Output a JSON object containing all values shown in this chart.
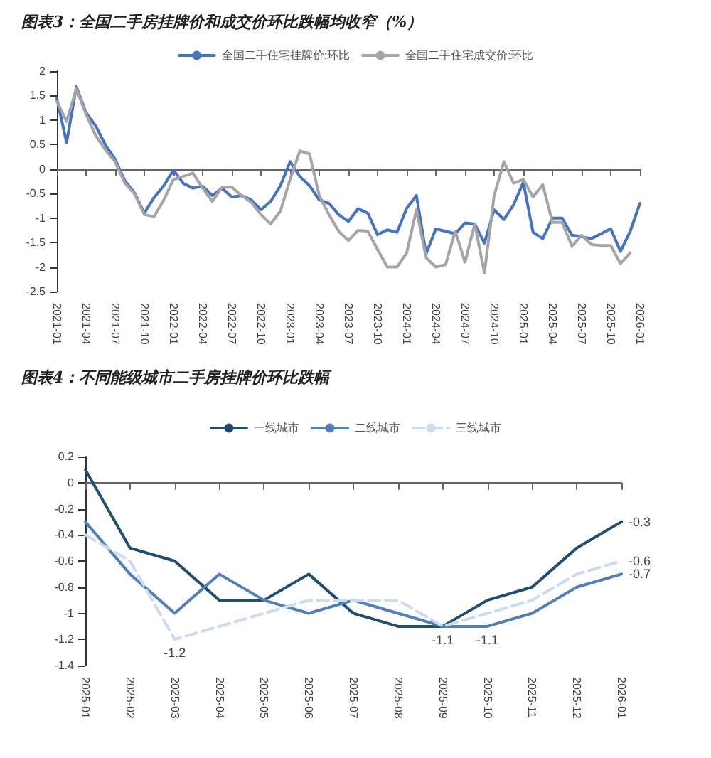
{
  "chart_data": [
    {
      "type": "line",
      "title": "图表3：全国二手房挂牌价和成交价环比跌幅均收窄（%）",
      "categories": [
        "2021-01",
        null,
        null,
        "2021-04",
        null,
        null,
        "2021-07",
        null,
        null,
        "2021-10",
        null,
        null,
        "2022-01",
        null,
        null,
        "2022-04",
        null,
        null,
        "2022-07",
        null,
        null,
        "2022-10",
        null,
        null,
        "2023-01",
        null,
        null,
        "2023-04",
        null,
        null,
        "2023-07",
        null,
        null,
        "2023-10",
        null,
        null,
        "2024-01",
        null,
        null,
        "2024-04",
        null,
        null,
        "2024-07",
        null,
        null,
        "2024-10",
        null,
        null,
        "2025-01",
        null,
        null,
        "2025-04",
        null,
        null,
        "2025-07",
        null,
        null,
        "2025-10",
        null,
        null,
        "2026-01"
      ],
      "series": [
        {
          "name": "全国二手住宅挂牌价:环比",
          "color": "#4472c4",
          "values": [
            1.44,
            0.54,
            1.68,
            1.15,
            0.88,
            0.49,
            0.2,
            -0.24,
            -0.49,
            -0.9,
            -0.58,
            -0.34,
            -0.02,
            -0.29,
            -0.39,
            -0.35,
            -0.54,
            -0.39,
            -0.57,
            -0.54,
            -0.63,
            -0.83,
            -0.66,
            -0.34,
            0.15,
            -0.15,
            -0.34,
            -0.63,
            -0.7,
            -0.93,
            -1.07,
            -0.81,
            -0.9,
            -1.34,
            -1.24,
            -1.29,
            -0.8,
            -0.54,
            -1.73,
            -1.22,
            -1.27,
            -1.32,
            -1.1,
            -1.12,
            -1.51,
            -0.83,
            -1.03,
            -0.73,
            -0.27,
            -1.29,
            -1.42,
            -1.0,
            -1.0,
            -1.35,
            -1.38,
            -1.42,
            -1.32,
            -1.22,
            -1.68,
            -1.27,
            -0.7
          ]
        },
        {
          "name": "全国二手住宅成交价:环比",
          "color": "#a5a5a5",
          "values": [
            1.38,
            0.97,
            1.64,
            1.12,
            0.68,
            0.39,
            0.15,
            -0.29,
            -0.51,
            -0.93,
            -0.97,
            -0.63,
            -0.21,
            -0.15,
            -0.08,
            -0.39,
            -0.66,
            -0.37,
            -0.37,
            -0.54,
            -0.68,
            -0.93,
            -1.12,
            -0.86,
            -0.21,
            0.37,
            0.31,
            -0.54,
            -0.93,
            -1.27,
            -1.46,
            -1.25,
            -1.27,
            -1.64,
            -2.0,
            -2.0,
            -1.71,
            -0.83,
            -1.81,
            -2.0,
            -1.95,
            -1.27,
            -1.9,
            -1.12,
            -2.12,
            -0.54,
            0.15,
            -0.29,
            -0.21,
            -0.57,
            -0.32,
            -1.09,
            -1.09,
            -1.58,
            -1.35,
            -1.54,
            -1.56,
            -1.56,
            -1.93,
            -1.71,
            null
          ]
        }
      ],
      "ylim": [
        -2.5,
        2
      ],
      "yticks": [
        -2.5,
        -2,
        -1.5,
        -1,
        -0.5,
        0,
        0.5,
        1,
        1.5,
        2
      ],
      "legend": "top",
      "marker": "none"
    },
    {
      "type": "line",
      "title": "图表4：不同能级城市二手房挂牌价环比跌幅",
      "categories": [
        "2025-01",
        "2025-02",
        "2025-03",
        "2025-04",
        "2025-05",
        "2025-06",
        "2025-07",
        "2025-08",
        "2025-09",
        "2025-10",
        "2025-11",
        "2025-12",
        "2026-01"
      ],
      "series": [
        {
          "name": "一线城市",
          "color": "#1f4e6e",
          "values": [
            0.1,
            -0.5,
            -0.6,
            -0.9,
            -0.9,
            -0.7,
            -1.0,
            -1.1,
            -1.1,
            -0.9,
            -0.8,
            -0.5,
            -0.3
          ],
          "value_labels": [
            null,
            null,
            null,
            null,
            null,
            null,
            null,
            null,
            "-1.1",
            null,
            null,
            null,
            "-0.3"
          ]
        },
        {
          "name": "二线城市",
          "color": "#4f7fbf",
          "values": [
            -0.3,
            -0.7,
            -1.0,
            -0.7,
            -0.9,
            -1.0,
            -0.9,
            -1.0,
            -1.1,
            -1.1,
            -1.0,
            -0.8,
            -0.7
          ],
          "value_labels": [
            null,
            null,
            null,
            null,
            null,
            null,
            null,
            null,
            null,
            "-1.1",
            null,
            null,
            "-0.7"
          ]
        },
        {
          "name": "三线城市",
          "color": "#c9dcf0",
          "line_style": "dashed",
          "values": [
            -0.4,
            -0.6,
            -1.2,
            -1.1,
            -1.0,
            -0.9,
            -0.9,
            -0.9,
            -1.1,
            -1.0,
            -0.9,
            -0.7,
            -0.6
          ],
          "value_labels": [
            null,
            null,
            "-1.2",
            null,
            null,
            null,
            null,
            null,
            null,
            null,
            null,
            null,
            "-0.6"
          ]
        }
      ],
      "ylim": [
        -1.4,
        0.2
      ],
      "yticks": [
        -1.4,
        -1.2,
        -1,
        -0.8,
        -0.6,
        -0.4,
        -0.2,
        0,
        0.2
      ],
      "legend": "top",
      "marker": "none"
    }
  ]
}
